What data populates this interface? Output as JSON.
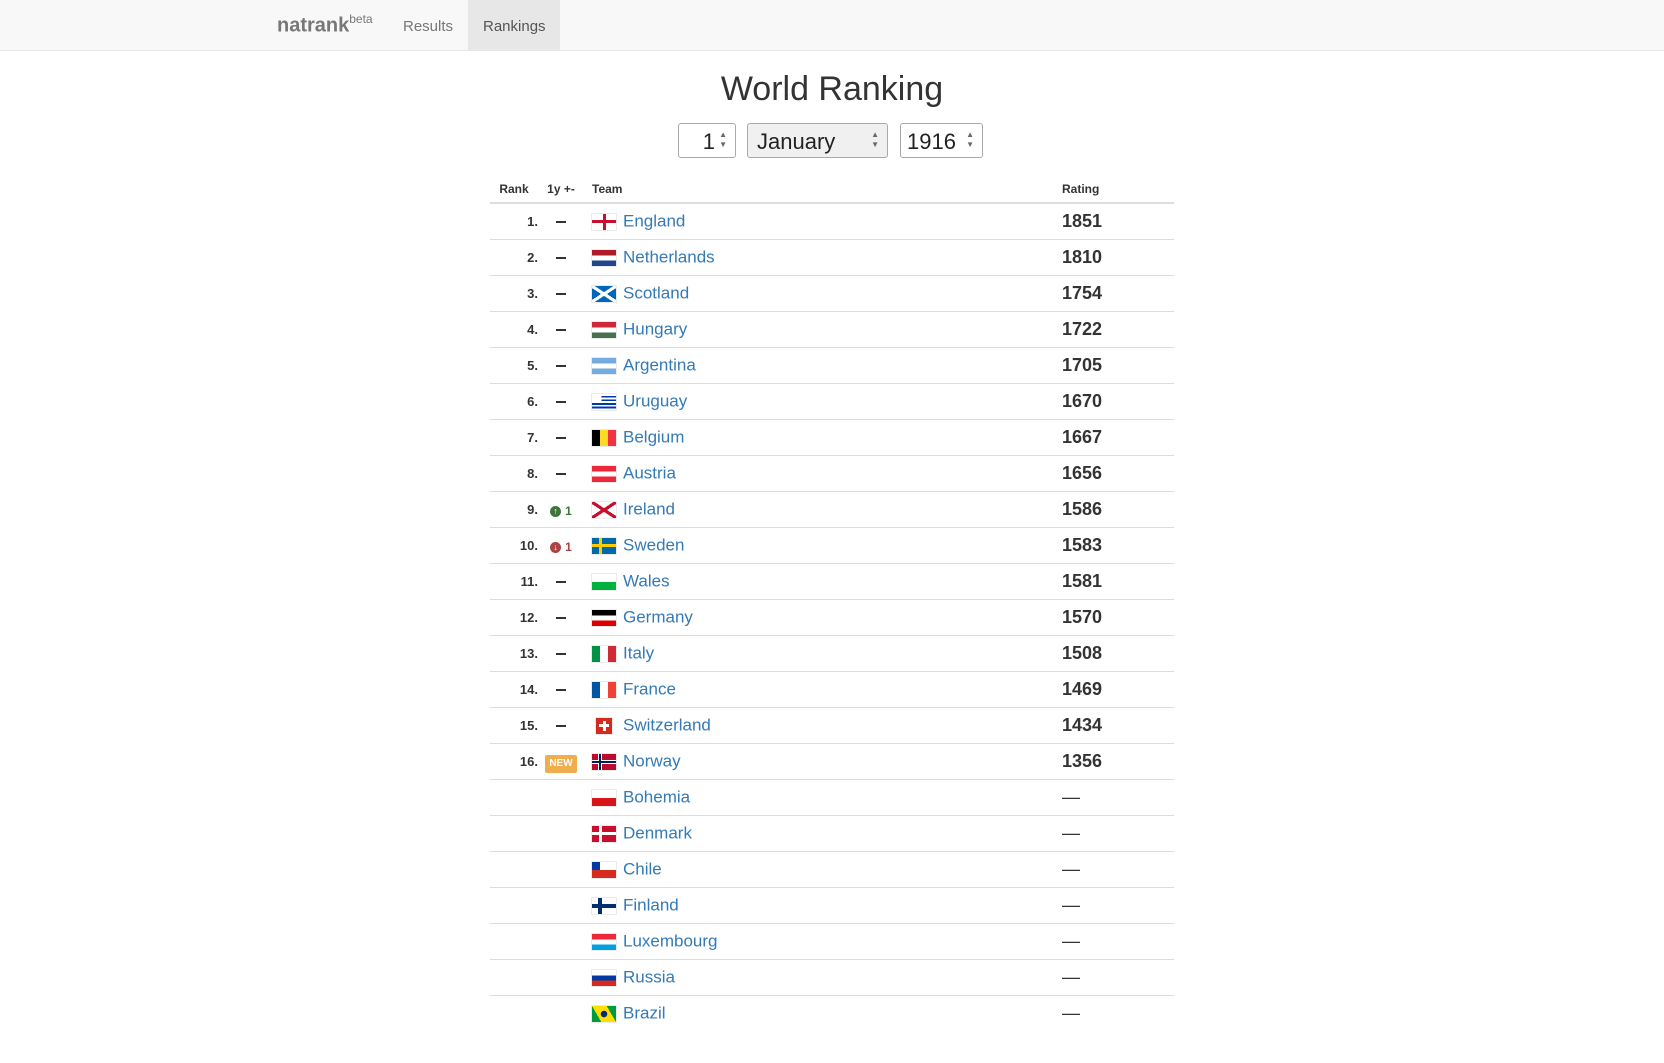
{
  "navbar": {
    "brand": "natrank",
    "brand_sup": "beta",
    "links": [
      {
        "label": "Results",
        "active": false
      },
      {
        "label": "Rankings",
        "active": true
      }
    ]
  },
  "page": {
    "title": "World Ranking",
    "date": {
      "day": "1",
      "month": "January",
      "year": "1916"
    }
  },
  "table": {
    "headers": {
      "rank": "Rank",
      "change": "1y +-",
      "team": "Team",
      "rating": "Rating"
    },
    "rows": [
      {
        "rank": "1.",
        "change": "none",
        "team": "England",
        "flag": "england",
        "rating": "1851"
      },
      {
        "rank": "2.",
        "change": "none",
        "team": "Netherlands",
        "flag": "netherlands",
        "rating": "1810"
      },
      {
        "rank": "3.",
        "change": "none",
        "team": "Scotland",
        "flag": "scotland",
        "rating": "1754"
      },
      {
        "rank": "4.",
        "change": "none",
        "team": "Hungary",
        "flag": "hungary",
        "rating": "1722"
      },
      {
        "rank": "5.",
        "change": "none",
        "team": "Argentina",
        "flag": "argentina",
        "rating": "1705"
      },
      {
        "rank": "6.",
        "change": "none",
        "team": "Uruguay",
        "flag": "uruguay",
        "rating": "1670"
      },
      {
        "rank": "7.",
        "change": "none",
        "team": "Belgium",
        "flag": "belgium",
        "rating": "1667"
      },
      {
        "rank": "8.",
        "change": "none",
        "team": "Austria",
        "flag": "austria",
        "rating": "1656"
      },
      {
        "rank": "9.",
        "change": "up",
        "change_value": "1",
        "team": "Ireland",
        "flag": "ireland",
        "rating": "1586"
      },
      {
        "rank": "10.",
        "change": "down",
        "change_value": "1",
        "team": "Sweden",
        "flag": "sweden",
        "rating": "1583"
      },
      {
        "rank": "11.",
        "change": "none",
        "team": "Wales",
        "flag": "wales",
        "rating": "1581"
      },
      {
        "rank": "12.",
        "change": "none",
        "team": "Germany",
        "flag": "germany",
        "rating": "1570"
      },
      {
        "rank": "13.",
        "change": "none",
        "team": "Italy",
        "flag": "italy",
        "rating": "1508"
      },
      {
        "rank": "14.",
        "change": "none",
        "team": "France",
        "flag": "france",
        "rating": "1469"
      },
      {
        "rank": "15.",
        "change": "none",
        "team": "Switzerland",
        "flag": "switzerland",
        "rating": "1434"
      },
      {
        "rank": "16.",
        "change": "new",
        "change_label": "NEW",
        "team": "Norway",
        "flag": "norway",
        "rating": "1356"
      },
      {
        "rank": "",
        "change": "blank",
        "team": "Bohemia",
        "flag": "bohemia",
        "rating": "—"
      },
      {
        "rank": "",
        "change": "blank",
        "team": "Denmark",
        "flag": "denmark",
        "rating": "—"
      },
      {
        "rank": "",
        "change": "blank",
        "team": "Chile",
        "flag": "chile",
        "rating": "—"
      },
      {
        "rank": "",
        "change": "blank",
        "team": "Finland",
        "flag": "finland",
        "rating": "—"
      },
      {
        "rank": "",
        "change": "blank",
        "team": "Luxembourg",
        "flag": "luxembourg",
        "rating": "—"
      },
      {
        "rank": "",
        "change": "blank",
        "team": "Russia",
        "flag": "russia",
        "rating": "—"
      },
      {
        "rank": "",
        "change": "blank",
        "team": "Brazil",
        "flag": "brazil",
        "rating": "—"
      }
    ]
  },
  "colors": {
    "link": "#337ab7",
    "up": "#3c763d",
    "down": "#a94442",
    "new": "#f0ad4e"
  }
}
